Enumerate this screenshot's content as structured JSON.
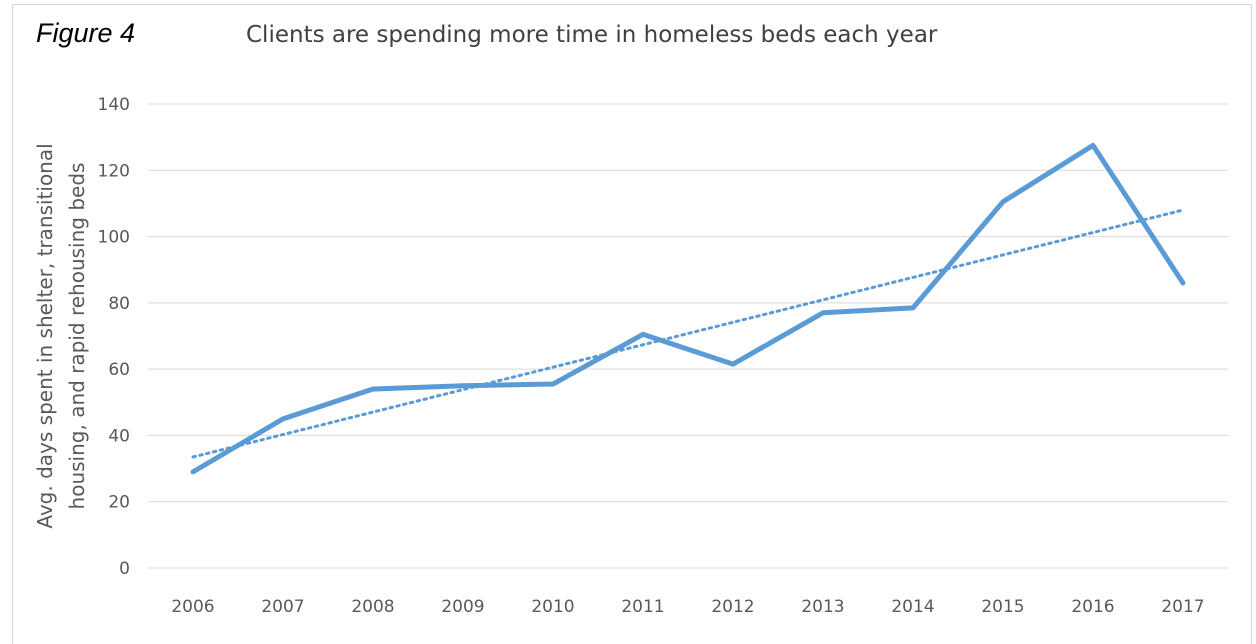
{
  "figure_label": "Figure 4",
  "chart_data": {
    "type": "line",
    "title": "Clients are spending more time in homeless beds each year",
    "xlabel": "",
    "ylabel_lines": [
      "Avg. days spent in shelter, transitional",
      "housing, and rapid rehousing beds"
    ],
    "categories": [
      "2006",
      "2007",
      "2008",
      "2009",
      "2010",
      "2011",
      "2012",
      "2013",
      "2014",
      "2015",
      "2016",
      "2017"
    ],
    "series": [
      {
        "values": [
          29,
          45,
          54,
          55,
          55.5,
          70.5,
          61.5,
          77,
          78.5,
          110.5,
          127.5,
          86
        ],
        "color": "#5b9bd5",
        "style": "solid"
      }
    ],
    "trendline": {
      "type": "linear",
      "color": "#5b9bd5",
      "style": "dotted",
      "values_at_ends": [
        33.5,
        108
      ]
    },
    "ylim": [
      0,
      140
    ],
    "yticks": [
      "0",
      "20",
      "40",
      "60",
      "80",
      "100",
      "120",
      "140"
    ],
    "grid": true,
    "gridline_color": "#d9d9d9",
    "legend": "none"
  }
}
